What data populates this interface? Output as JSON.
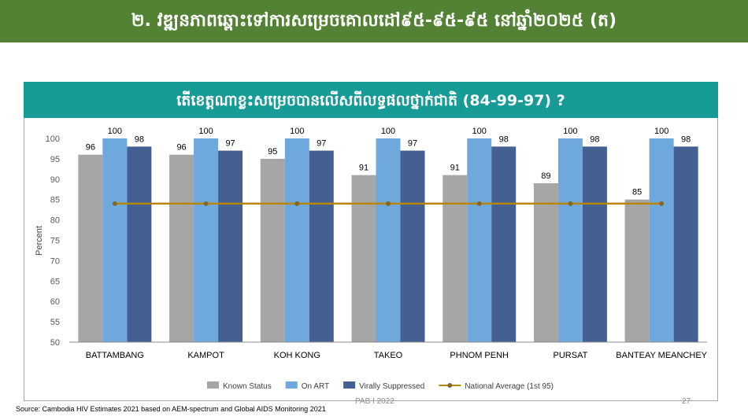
{
  "slide": {
    "title": "២. វឌ្ឍនភាពឆ្ពោះទៅការសម្រេចគោលដៅ៩៥-៩៥-៩៥ នៅឆ្នាំ២០២៥ (ត)",
    "source": "Source: Cambodia HIV Estimates 2021 based on AEM-spectrum and Global AIDS Monitoring 2021",
    "footer": "PAB I 2022",
    "page_number": "27"
  },
  "chart_data": {
    "type": "bar",
    "title": "តើខេត្តណាខ្លះសម្រេចបានលើសពីលទ្ធផលថ្នាក់ជាតិ (84-99-97) ?",
    "xlabel": "",
    "ylabel": "Percent",
    "ylim": [
      50,
      100
    ],
    "yticks": [
      "50",
      "55",
      "60",
      "65",
      "70",
      "75",
      "80",
      "85",
      "90",
      "95",
      "100"
    ],
    "categories": [
      "BATTAMBANG",
      "KAMPOT",
      "KOH KONG",
      "TAKEO",
      "PHNOM PENH",
      "PURSAT",
      "BANTEAY MEANCHEY"
    ],
    "series": [
      {
        "name": "Known Status",
        "color": "#a6a6a6",
        "values": [
          96,
          96,
          95,
          91,
          91,
          89,
          85
        ]
      },
      {
        "name": "On ART",
        "color": "#6fa8dc",
        "values": [
          100,
          100,
          100,
          100,
          100,
          100,
          100
        ]
      },
      {
        "name": "Virally Suppressed",
        "color": "#445f91",
        "values": [
          98,
          97,
          97,
          97,
          98,
          98,
          98
        ]
      }
    ],
    "line_series": {
      "name": "National Average (1st 95)",
      "color": "#b8860b",
      "marker_color": "#7f6a2a",
      "value": 84
    },
    "grid": false,
    "legend": "bottom"
  }
}
